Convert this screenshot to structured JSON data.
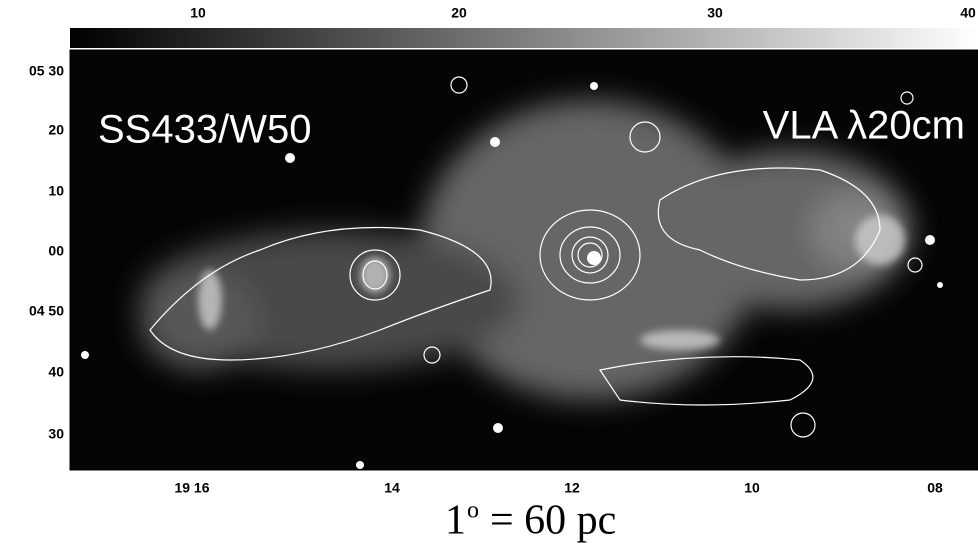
{
  "colorbar": {
    "ticks": [
      "10",
      "20",
      "30",
      "40"
    ]
  },
  "y_axis": {
    "ticks": [
      "05 30",
      "20",
      "10",
      "00",
      "04 50",
      "40",
      "30"
    ]
  },
  "x_axis": {
    "ticks": [
      "19 16",
      "14",
      "12",
      "10",
      "08"
    ]
  },
  "labels": {
    "object": "SS433/W50",
    "instrument": "VLA  λ20cm"
  },
  "scale": {
    "number": "1",
    "degree": "o",
    "rest": "= 60 pc"
  }
}
